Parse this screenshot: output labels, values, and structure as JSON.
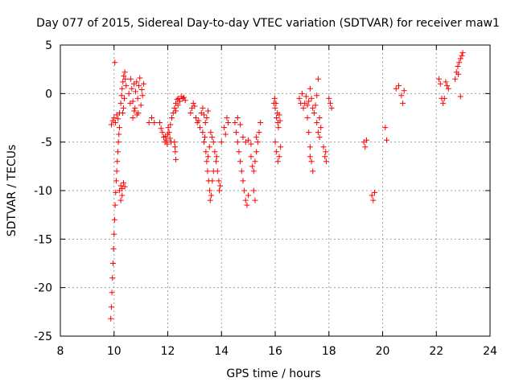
{
  "chart_data": {
    "type": "scatter",
    "title": "Day 077 of 2015, Sidereal Day-to-day VTEC variation (SDTVAR) for receiver maw1",
    "xlabel": "GPS time / hours",
    "ylabel": "SDTVAR / TECUs",
    "xlim": [
      8,
      24
    ],
    "ylim": [
      -25,
      5
    ],
    "xticks": [
      "8",
      "10",
      "12",
      "14",
      "16",
      "18",
      "20",
      "22",
      "24"
    ],
    "yticks": [
      "5",
      "0",
      "-5",
      "-10",
      "-15",
      "-20",
      "-25"
    ],
    "grid": true,
    "marker": "+",
    "series": [
      {
        "name": "SDTVAR",
        "color": "#ff0000",
        "points": [
          [
            9.88,
            -23.2
          ],
          [
            9.9,
            -22.0
          ],
          [
            9.92,
            -20.5
          ],
          [
            9.94,
            -19.0
          ],
          [
            9.96,
            -17.5
          ],
          [
            9.98,
            -16.0
          ],
          [
            10.0,
            -14.5
          ],
          [
            10.02,
            -13.0
          ],
          [
            10.04,
            -11.5
          ],
          [
            10.06,
            -10.2
          ],
          [
            10.08,
            -9.0
          ],
          [
            10.1,
            -8.0
          ],
          [
            10.12,
            -7.0
          ],
          [
            10.14,
            -6.0
          ],
          [
            10.16,
            -5.0
          ],
          [
            10.18,
            -4.2
          ],
          [
            10.2,
            -3.5
          ],
          [
            9.9,
            -3.2
          ],
          [
            9.95,
            -2.8
          ],
          [
            10.0,
            -2.5
          ],
          [
            10.05,
            -3.0
          ],
          [
            10.1,
            -2.2
          ],
          [
            10.15,
            -2.6
          ],
          [
            10.2,
            -2.0
          ],
          [
            10.03,
            3.2
          ],
          [
            10.2,
            -10.0
          ],
          [
            10.25,
            -9.5
          ],
          [
            10.3,
            -9.8
          ],
          [
            10.35,
            -9.2
          ],
          [
            10.4,
            -9.6
          ],
          [
            10.3,
            -10.5
          ],
          [
            10.25,
            -11.0
          ],
          [
            10.25,
            -1.0
          ],
          [
            10.28,
            -0.2
          ],
          [
            10.3,
            0.5
          ],
          [
            10.33,
            1.2
          ],
          [
            10.36,
            1.8
          ],
          [
            10.4,
            2.2
          ],
          [
            10.42,
            1.5
          ],
          [
            10.45,
            0.8
          ],
          [
            10.38,
            -0.5
          ],
          [
            10.35,
            -1.5
          ],
          [
            10.32,
            -2.0
          ],
          [
            10.55,
            0.0
          ],
          [
            10.6,
            -1.0
          ],
          [
            10.62,
            1.5
          ],
          [
            10.66,
            0.5
          ],
          [
            10.7,
            -0.8
          ],
          [
            10.74,
            1.0
          ],
          [
            10.78,
            -1.5
          ],
          [
            10.8,
            0.2
          ],
          [
            10.84,
            1.2
          ],
          [
            10.88,
            -0.5
          ],
          [
            10.9,
            -2.0
          ],
          [
            10.92,
            0.8
          ],
          [
            10.96,
            1.6
          ],
          [
            11.0,
            -1.2
          ],
          [
            11.03,
            0.4
          ],
          [
            11.06,
            -0.2
          ],
          [
            11.1,
            1.0
          ],
          [
            10.7,
            -2.5
          ],
          [
            10.75,
            -1.8
          ],
          [
            10.85,
            -2.2
          ],
          [
            11.3,
            -3.0
          ],
          [
            11.4,
            -2.5
          ],
          [
            11.5,
            -3.0
          ],
          [
            11.7,
            -3.0
          ],
          [
            11.75,
            -3.6
          ],
          [
            11.8,
            -4.0
          ],
          [
            11.85,
            -4.5
          ],
          [
            11.9,
            -5.0
          ],
          [
            11.95,
            -4.8
          ],
          [
            12.0,
            -4.2
          ],
          [
            12.02,
            -3.5
          ],
          [
            12.05,
            -4.0
          ],
          [
            12.1,
            -3.2
          ],
          [
            12.15,
            -2.5
          ],
          [
            11.92,
            -4.4
          ],
          [
            11.98,
            -5.2
          ],
          [
            12.08,
            -4.6
          ],
          [
            12.12,
            -5.0
          ],
          [
            12.2,
            -2.0
          ],
          [
            12.25,
            -1.5
          ],
          [
            12.3,
            -1.0
          ],
          [
            12.35,
            -0.6
          ],
          [
            12.4,
            -0.5
          ],
          [
            12.45,
            -0.8
          ],
          [
            12.5,
            -0.3
          ],
          [
            12.55,
            -0.5
          ],
          [
            12.6,
            -0.4
          ],
          [
            12.65,
            -0.7
          ],
          [
            12.3,
            -1.8
          ],
          [
            12.38,
            -1.2
          ],
          [
            12.25,
            -5.0
          ],
          [
            12.28,
            -6.0
          ],
          [
            12.3,
            -6.8
          ],
          [
            12.27,
            -5.5
          ],
          [
            12.85,
            -2.0
          ],
          [
            12.9,
            -1.5
          ],
          [
            12.95,
            -1.0
          ],
          [
            13.0,
            -1.3
          ],
          [
            13.05,
            -2.5
          ],
          [
            13.1,
            -3.0
          ],
          [
            13.15,
            -2.8
          ],
          [
            13.2,
            -3.5
          ],
          [
            13.25,
            -2.0
          ],
          [
            13.3,
            -1.5
          ],
          [
            13.35,
            -2.2
          ],
          [
            13.4,
            -3.0
          ],
          [
            13.45,
            -2.5
          ],
          [
            13.5,
            -1.8
          ],
          [
            13.3,
            -4.0
          ],
          [
            13.35,
            -5.0
          ],
          [
            13.38,
            -4.5
          ],
          [
            13.42,
            -6.0
          ],
          [
            13.45,
            -7.0
          ],
          [
            13.5,
            -6.5
          ],
          [
            13.55,
            -5.5
          ],
          [
            13.6,
            -4.0
          ],
          [
            13.65,
            -4.5
          ],
          [
            13.7,
            -5.0
          ],
          [
            13.48,
            -8.0
          ],
          [
            13.52,
            -9.0
          ],
          [
            13.56,
            -10.0
          ],
          [
            13.58,
            -11.0
          ],
          [
            13.62,
            -10.5
          ],
          [
            13.66,
            -9.0
          ],
          [
            13.7,
            -8.0
          ],
          [
            13.8,
            -7.0
          ],
          [
            13.85,
            -8.0
          ],
          [
            13.9,
            -9.0
          ],
          [
            13.95,
            -9.5
          ],
          [
            13.75,
            -6.0
          ],
          [
            13.82,
            -6.5
          ],
          [
            13.92,
            -10.0
          ],
          [
            14.0,
            -5.0
          ],
          [
            14.1,
            -3.5
          ],
          [
            14.2,
            -2.5
          ],
          [
            14.25,
            -3.0
          ],
          [
            14.15,
            -4.2
          ],
          [
            14.5,
            -3.0
          ],
          [
            14.55,
            -4.0
          ],
          [
            14.6,
            -5.0
          ],
          [
            14.65,
            -6.0
          ],
          [
            14.7,
            -7.0
          ],
          [
            14.75,
            -8.0
          ],
          [
            14.8,
            -9.0
          ],
          [
            14.85,
            -10.0
          ],
          [
            14.9,
            -11.0
          ],
          [
            14.95,
            -11.5
          ],
          [
            15.0,
            -10.5
          ],
          [
            14.6,
            -2.5
          ],
          [
            14.7,
            -3.2
          ],
          [
            14.8,
            -4.5
          ],
          [
            14.9,
            -5.0
          ],
          [
            15.0,
            -4.8
          ],
          [
            15.1,
            -5.2
          ],
          [
            15.1,
            -6.5
          ],
          [
            15.15,
            -7.5
          ],
          [
            15.2,
            -8.0
          ],
          [
            15.25,
            -7.0
          ],
          [
            15.3,
            -6.0
          ],
          [
            15.35,
            -5.0
          ],
          [
            15.4,
            -4.0
          ],
          [
            15.45,
            -3.0
          ],
          [
            15.3,
            -4.5
          ],
          [
            15.2,
            -10.0
          ],
          [
            15.25,
            -11.0
          ],
          [
            15.95,
            -1.0
          ],
          [
            16.0,
            -1.5
          ],
          [
            16.05,
            -2.5
          ],
          [
            16.1,
            -3.0
          ],
          [
            16.15,
            -2.2
          ],
          [
            15.98,
            -0.5
          ],
          [
            16.03,
            -1.0
          ],
          [
            16.08,
            -2.0
          ],
          [
            16.12,
            -3.5
          ],
          [
            16.18,
            -2.8
          ],
          [
            16.0,
            -5.0
          ],
          [
            16.05,
            -6.0
          ],
          [
            16.1,
            -7.0
          ],
          [
            16.15,
            -6.5
          ],
          [
            16.2,
            -5.5
          ],
          [
            16.9,
            -0.5
          ],
          [
            16.95,
            -1.0
          ],
          [
            17.0,
            0.0
          ],
          [
            17.05,
            -1.5
          ],
          [
            17.1,
            -1.0
          ],
          [
            17.15,
            -0.3
          ],
          [
            17.2,
            -1.2
          ],
          [
            17.25,
            -0.8
          ],
          [
            17.3,
            0.5
          ],
          [
            17.35,
            -0.5
          ],
          [
            17.4,
            -1.5
          ],
          [
            17.45,
            -2.0
          ],
          [
            17.5,
            -1.2
          ],
          [
            17.55,
            -0.2
          ],
          [
            17.6,
            1.5
          ],
          [
            17.65,
            -2.5
          ],
          [
            17.2,
            -2.5
          ],
          [
            17.25,
            -4.0
          ],
          [
            17.3,
            -5.5
          ],
          [
            17.35,
            -7.0
          ],
          [
            17.4,
            -8.0
          ],
          [
            17.3,
            -6.5
          ],
          [
            17.55,
            -3.0
          ],
          [
            17.6,
            -4.0
          ],
          [
            17.65,
            -4.5
          ],
          [
            17.7,
            -3.5
          ],
          [
            17.8,
            -5.5
          ],
          [
            17.85,
            -6.5
          ],
          [
            17.9,
            -7.0
          ],
          [
            17.88,
            -6.0
          ],
          [
            18.0,
            -0.5
          ],
          [
            18.05,
            -1.0
          ],
          [
            18.1,
            -1.5
          ],
          [
            19.3,
            -5.0
          ],
          [
            19.35,
            -5.5
          ],
          [
            19.4,
            -4.8
          ],
          [
            19.6,
            -10.5
          ],
          [
            19.65,
            -11.0
          ],
          [
            19.7,
            -10.2
          ],
          [
            20.1,
            -3.5
          ],
          [
            20.15,
            -4.8
          ],
          [
            20.5,
            0.5
          ],
          [
            20.6,
            0.8
          ],
          [
            20.7,
            -0.2
          ],
          [
            20.75,
            -1.0
          ],
          [
            20.8,
            0.3
          ],
          [
            22.1,
            1.5
          ],
          [
            22.15,
            1.0
          ],
          [
            22.2,
            -0.5
          ],
          [
            22.25,
            -1.0
          ],
          [
            22.3,
            -0.5
          ],
          [
            22.35,
            1.2
          ],
          [
            22.4,
            0.8
          ],
          [
            22.45,
            0.5
          ],
          [
            22.7,
            1.5
          ],
          [
            22.75,
            2.2
          ],
          [
            22.8,
            2.8
          ],
          [
            22.85,
            3.2
          ],
          [
            22.9,
            3.6
          ],
          [
            22.95,
            3.9
          ],
          [
            22.98,
            4.2
          ],
          [
            22.9,
            -0.3
          ],
          [
            22.82,
            2.0
          ]
        ]
      }
    ]
  }
}
